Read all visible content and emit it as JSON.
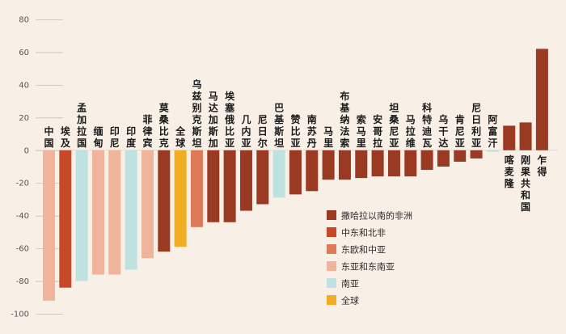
{
  "chart_data": {
    "type": "bar",
    "ylim": [
      -100,
      80
    ],
    "yticks": [
      80,
      60,
      40,
      20,
      0,
      -20,
      -40,
      -60,
      -80,
      -100
    ],
    "grid": true,
    "legend_position": "bottom-right",
    "colors": {
      "ssa": "#9b3a22",
      "mena": "#c8482a",
      "eeca": "#dd7b58",
      "eap": "#efb49a",
      "sa": "#bfe2e1",
      "global": "#f0ae25"
    },
    "legend": [
      {
        "key": "ssa",
        "label": "撒哈拉以南的非洲"
      },
      {
        "key": "mena",
        "label": "中东和北非"
      },
      {
        "key": "eeca",
        "label": "东欧和中亚"
      },
      {
        "key": "eap",
        "label": "东亚和东南亚"
      },
      {
        "key": "sa",
        "label": "南亚"
      },
      {
        "key": "global",
        "label": "全球"
      }
    ],
    "categories": [
      {
        "label": "中国",
        "value": -92,
        "group": "eap"
      },
      {
        "label": "埃及",
        "value": -84,
        "group": "mena"
      },
      {
        "label": "孟加拉国",
        "value": -80,
        "group": "sa"
      },
      {
        "label": "缅甸",
        "value": -76,
        "group": "eap"
      },
      {
        "label": "印尼",
        "value": -76,
        "group": "eap"
      },
      {
        "label": "印度",
        "value": -73,
        "group": "sa"
      },
      {
        "label": "菲律宾",
        "value": -66,
        "group": "eap"
      },
      {
        "label": "莫桑比克",
        "value": -62,
        "group": "ssa"
      },
      {
        "label": "全球",
        "value": -59,
        "group": "global"
      },
      {
        "label": "乌兹别克斯坦",
        "value": -47,
        "group": "eeca"
      },
      {
        "label": "马达加斯加",
        "value": -44,
        "group": "ssa"
      },
      {
        "label": "埃塞俄比亚",
        "value": -44,
        "group": "ssa"
      },
      {
        "label": "几内亚",
        "value": -37,
        "group": "ssa"
      },
      {
        "label": "尼日尔",
        "value": -33,
        "group": "ssa"
      },
      {
        "label": "巴基斯坦",
        "value": -29,
        "group": "sa"
      },
      {
        "label": "赞比亚",
        "value": -27,
        "group": "ssa"
      },
      {
        "label": "南苏丹",
        "value": -25,
        "group": "ssa"
      },
      {
        "label": "马里",
        "value": -18,
        "group": "ssa"
      },
      {
        "label": "布基纳法索",
        "value": -18,
        "group": "ssa"
      },
      {
        "label": "索马里",
        "value": -17,
        "group": "ssa"
      },
      {
        "label": "安哥拉",
        "value": -16,
        "group": "ssa"
      },
      {
        "label": "坦桑尼亚",
        "value": -16,
        "group": "ssa"
      },
      {
        "label": "马拉维",
        "value": -16,
        "group": "ssa"
      },
      {
        "label": "科特迪瓦",
        "value": -12,
        "group": "ssa"
      },
      {
        "label": "乌干达",
        "value": -10,
        "group": "ssa"
      },
      {
        "label": "肯尼亚",
        "value": -7,
        "group": "ssa"
      },
      {
        "label": "尼日利亚",
        "value": -5,
        "group": "ssa"
      },
      {
        "label": "阿富汗",
        "value": -1,
        "group": "sa"
      },
      {
        "label": "喀麦隆",
        "value": 15,
        "group": "ssa"
      },
      {
        "label": "刚果共和国",
        "value": 17,
        "group": "ssa"
      },
      {
        "label": "乍得",
        "value": 62,
        "group": "ssa"
      }
    ]
  }
}
